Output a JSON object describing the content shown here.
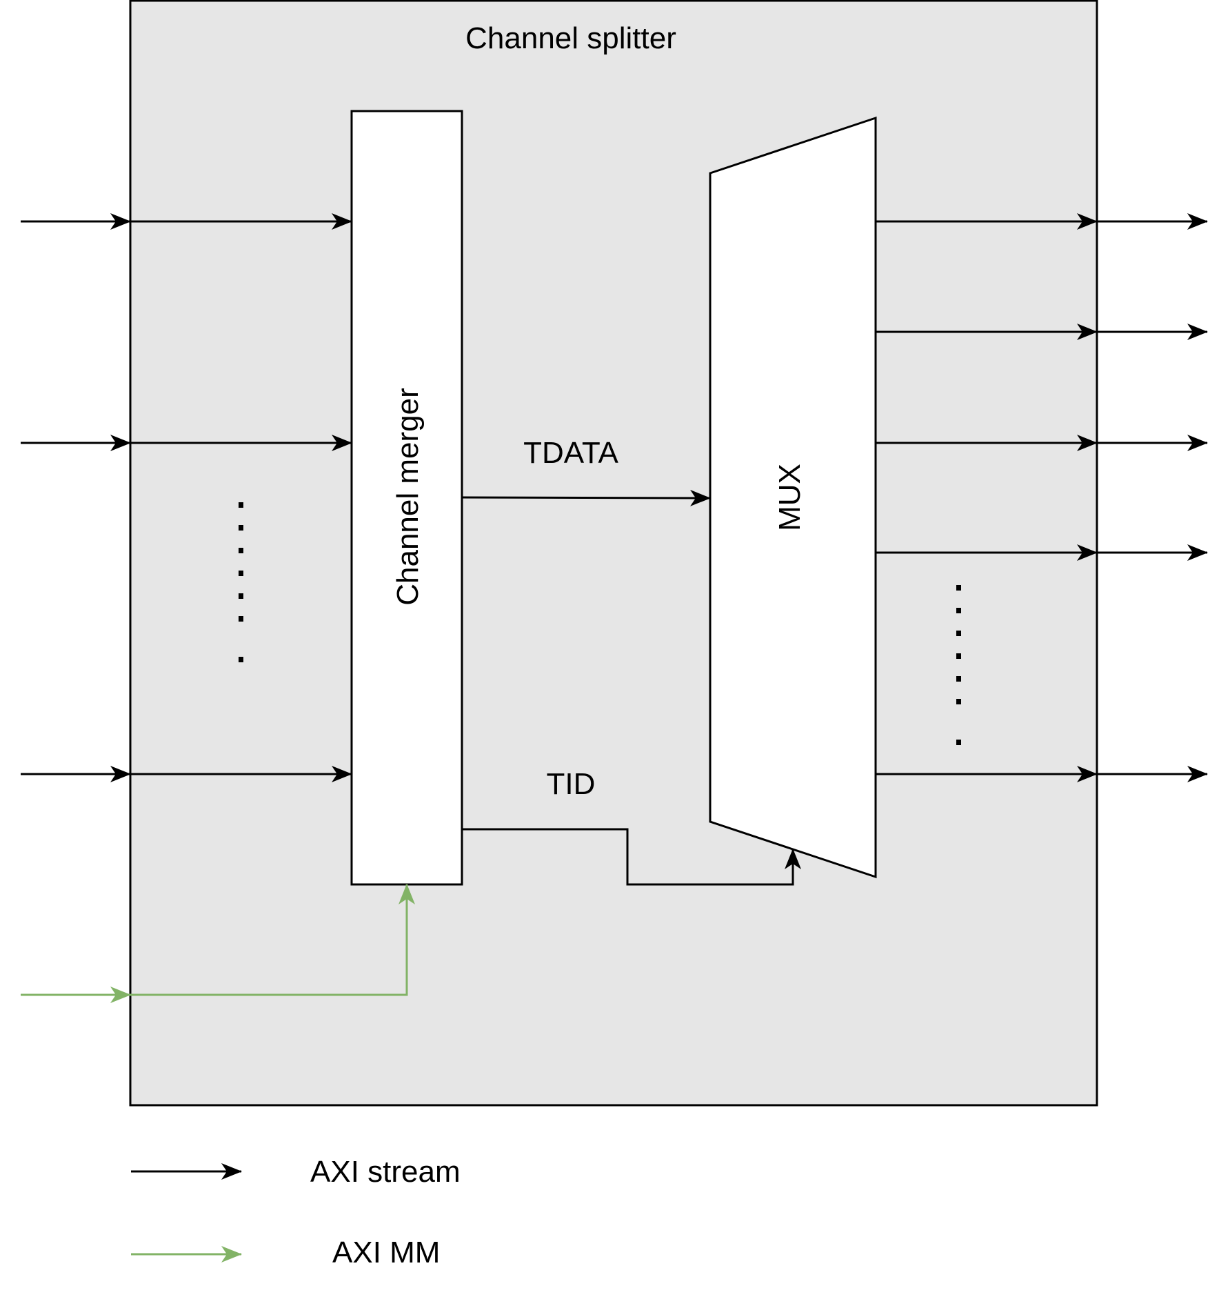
{
  "diagram": {
    "container_title": "Channel splitter",
    "merger_label": "Channel merger",
    "mux_label": "MUX",
    "tdata_label": "TDATA",
    "tid_label": "TID",
    "input_ellipsis": "·······",
    "output_ellipsis": "·······"
  },
  "legend": {
    "axi_stream_label": "AXI stream",
    "axi_mm_label": "AXI MM"
  },
  "colors": {
    "container_fill": "#e6e6e6",
    "block_fill": "#ffffff",
    "stroke": "#000000",
    "axi_stream": "#000000",
    "axi_mm": "#82b366"
  }
}
